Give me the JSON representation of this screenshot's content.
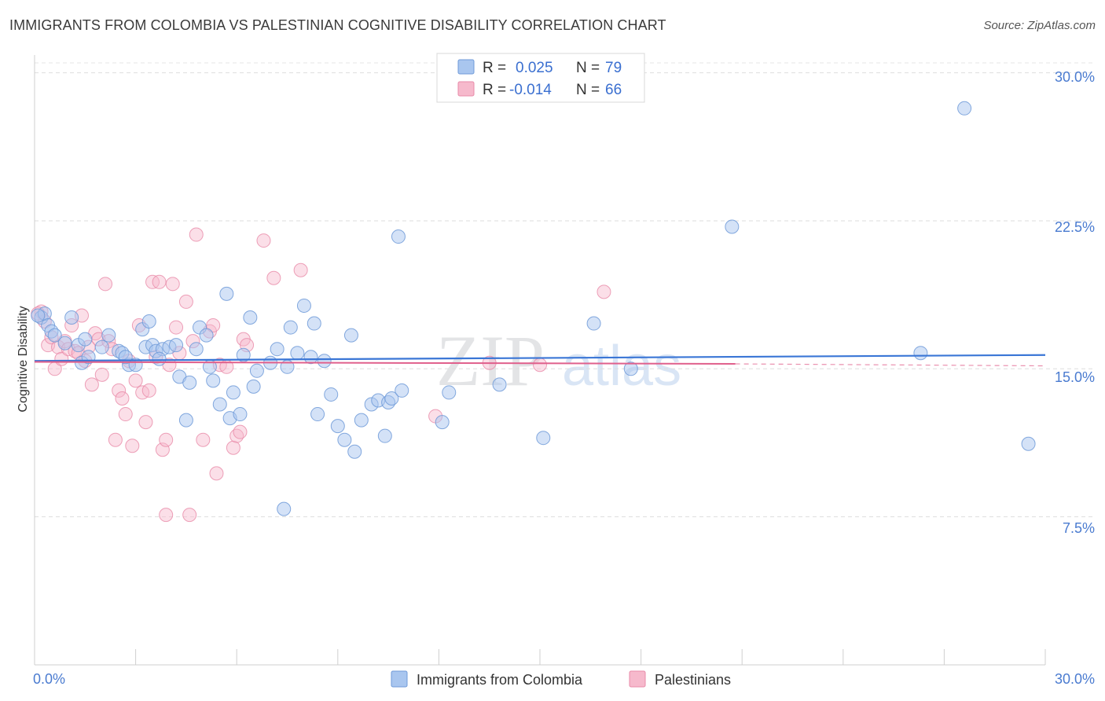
{
  "title": "IMMIGRANTS FROM COLOMBIA VS PALESTINIAN COGNITIVE DISABILITY CORRELATION CHART",
  "source": "Source: ZipAtlas.com",
  "watermark": {
    "zip": "ZIP",
    "atlas": "atlas"
  },
  "legend_top": {
    "rows": [
      {
        "r_label": "R =",
        "r_value": "0.025",
        "n_label": "N =",
        "n_value": "79"
      },
      {
        "r_label": "R =",
        "r_value": "-0.014",
        "n_label": "N =",
        "n_value": "66"
      }
    ]
  },
  "legend_bottom": [
    "Immigrants from Colombia",
    "Palestinians"
  ],
  "colors": {
    "blue_fill": "#a9c6ef",
    "blue_stroke": "#6f9ad8",
    "blue_line": "#3a76d6",
    "pink_fill": "#f6b9cc",
    "pink_stroke": "#e88aa8",
    "pink_line": "#e0608c",
    "axis_text": "#4a7bd0"
  },
  "chart_data": {
    "type": "scatter",
    "title": "IMMIGRANTS FROM COLOMBIA VS PALESTINIAN COGNITIVE DISABILITY CORRELATION CHART",
    "xlabel": "",
    "ylabel": "Cognitive Disability",
    "xlim": [
      0,
      30
    ],
    "ylim": [
      0,
      30.9
    ],
    "x_tick_labels": [
      "0.0%",
      "30.0%"
    ],
    "y_ticks": [
      7.5,
      15.0,
      22.5,
      30.0
    ],
    "y_tick_labels": [
      "7.5%",
      "15.0%",
      "22.5%",
      "30.0%"
    ],
    "grid": true,
    "legend_position": "top-center",
    "series": [
      {
        "name": "Immigrants from Colombia",
        "r": 0.025,
        "n": 79,
        "trend": {
          "x": [
            0,
            30
          ],
          "y": [
            15.4,
            15.7
          ]
        },
        "points": [
          [
            0.2,
            17.6
          ],
          [
            0.3,
            17.8
          ],
          [
            0.4,
            17.2
          ],
          [
            0.5,
            16.9
          ],
          [
            0.6,
            16.7
          ],
          [
            1.1,
            17.6
          ],
          [
            0.9,
            16.3
          ],
          [
            1.3,
            16.2
          ],
          [
            1.5,
            16.5
          ],
          [
            1.4,
            15.3
          ],
          [
            1.6,
            15.6
          ],
          [
            2.2,
            16.7
          ],
          [
            2.5,
            15.9
          ],
          [
            2.0,
            16.1
          ],
          [
            2.6,
            15.8
          ],
          [
            2.8,
            15.2
          ],
          [
            3.0,
            15.2
          ],
          [
            3.2,
            17.0
          ],
          [
            3.3,
            16.1
          ],
          [
            3.4,
            17.4
          ],
          [
            3.5,
            16.2
          ],
          [
            3.6,
            15.9
          ],
          [
            3.8,
            16.0
          ],
          [
            4.0,
            16.1
          ],
          [
            4.2,
            16.2
          ],
          [
            4.3,
            14.6
          ],
          [
            4.5,
            12.4
          ],
          [
            4.6,
            14.3
          ],
          [
            4.8,
            16.0
          ],
          [
            4.9,
            17.1
          ],
          [
            5.1,
            16.7
          ],
          [
            5.2,
            15.1
          ],
          [
            5.3,
            14.4
          ],
          [
            5.5,
            13.2
          ],
          [
            5.7,
            18.8
          ],
          [
            5.8,
            12.5
          ],
          [
            5.9,
            13.8
          ],
          [
            6.1,
            12.7
          ],
          [
            6.2,
            15.7
          ],
          [
            6.4,
            17.6
          ],
          [
            6.5,
            14.1
          ],
          [
            6.6,
            14.9
          ],
          [
            7.0,
            15.3
          ],
          [
            7.2,
            16.0
          ],
          [
            7.5,
            15.1
          ],
          [
            7.6,
            17.1
          ],
          [
            7.8,
            15.8
          ],
          [
            8.0,
            18.2
          ],
          [
            8.2,
            15.6
          ],
          [
            8.4,
            12.7
          ],
          [
            8.3,
            17.3
          ],
          [
            8.6,
            15.4
          ],
          [
            8.8,
            13.7
          ],
          [
            9.0,
            12.1
          ],
          [
            9.2,
            11.4
          ],
          [
            9.4,
            16.7
          ],
          [
            9.5,
            10.8
          ],
          [
            9.7,
            12.4
          ],
          [
            10.0,
            13.2
          ],
          [
            10.2,
            13.4
          ],
          [
            10.4,
            11.6
          ],
          [
            10.5,
            13.3
          ],
          [
            10.6,
            13.5
          ],
          [
            10.9,
            13.9
          ],
          [
            10.8,
            21.7
          ],
          [
            12.1,
            12.3
          ],
          [
            12.3,
            13.8
          ],
          [
            13.8,
            14.2
          ],
          [
            15.1,
            11.5
          ],
          [
            16.6,
            17.3
          ],
          [
            17.7,
            15.0
          ],
          [
            20.7,
            22.2
          ],
          [
            26.3,
            15.8
          ],
          [
            27.6,
            28.2
          ],
          [
            29.5,
            11.2
          ],
          [
            7.4,
            7.9
          ],
          [
            0.1,
            17.7
          ],
          [
            2.7,
            15.6
          ],
          [
            3.7,
            15.5
          ]
        ]
      },
      {
        "name": "Palestinians",
        "r": -0.014,
        "n": 66,
        "trend": {
          "x": [
            0,
            20.8
          ],
          "y": [
            15.35,
            15.25
          ]
        },
        "trend_dashed": {
          "x": [
            20.8,
            30
          ],
          "y": [
            15.25,
            15.15
          ]
        },
        "points": [
          [
            0.2,
            17.9
          ],
          [
            0.3,
            17.4
          ],
          [
            0.4,
            16.2
          ],
          [
            0.5,
            16.6
          ],
          [
            0.6,
            15.0
          ],
          [
            0.7,
            16.1
          ],
          [
            0.8,
            15.5
          ],
          [
            0.9,
            16.4
          ],
          [
            1.0,
            16.0
          ],
          [
            1.1,
            17.2
          ],
          [
            1.2,
            15.9
          ],
          [
            1.3,
            15.8
          ],
          [
            1.5,
            15.4
          ],
          [
            1.6,
            16.1
          ],
          [
            1.7,
            14.2
          ],
          [
            1.8,
            16.8
          ],
          [
            1.9,
            16.5
          ],
          [
            2.0,
            14.7
          ],
          [
            2.1,
            19.3
          ],
          [
            2.2,
            16.4
          ],
          [
            2.3,
            16.0
          ],
          [
            2.4,
            11.4
          ],
          [
            2.5,
            13.9
          ],
          [
            2.6,
            13.5
          ],
          [
            2.7,
            12.7
          ],
          [
            2.8,
            15.4
          ],
          [
            2.9,
            11.1
          ],
          [
            3.0,
            14.4
          ],
          [
            3.1,
            17.2
          ],
          [
            3.2,
            13.8
          ],
          [
            3.3,
            12.3
          ],
          [
            3.4,
            13.9
          ],
          [
            3.5,
            19.4
          ],
          [
            3.6,
            15.6
          ],
          [
            3.7,
            19.4
          ],
          [
            3.8,
            10.9
          ],
          [
            3.9,
            11.4
          ],
          [
            4.0,
            15.2
          ],
          [
            4.1,
            19.3
          ],
          [
            4.2,
            17.1
          ],
          [
            4.3,
            15.8
          ],
          [
            4.5,
            18.4
          ],
          [
            4.6,
            7.6
          ],
          [
            4.7,
            16.4
          ],
          [
            4.8,
            21.8
          ],
          [
            5.0,
            11.4
          ],
          [
            5.2,
            16.9
          ],
          [
            5.3,
            17.2
          ],
          [
            5.4,
            9.7
          ],
          [
            5.5,
            15.2
          ],
          [
            5.7,
            15.1
          ],
          [
            5.9,
            11.0
          ],
          [
            6.0,
            11.6
          ],
          [
            6.1,
            11.8
          ],
          [
            6.2,
            16.5
          ],
          [
            6.3,
            16.2
          ],
          [
            6.8,
            21.5
          ],
          [
            7.1,
            19.6
          ],
          [
            7.9,
            20.0
          ],
          [
            11.9,
            12.6
          ],
          [
            13.5,
            15.3
          ],
          [
            15.0,
            15.2
          ],
          [
            16.9,
            18.9
          ],
          [
            3.9,
            7.6
          ],
          [
            0.1,
            17.8
          ],
          [
            1.4,
            17.7
          ]
        ]
      }
    ]
  }
}
